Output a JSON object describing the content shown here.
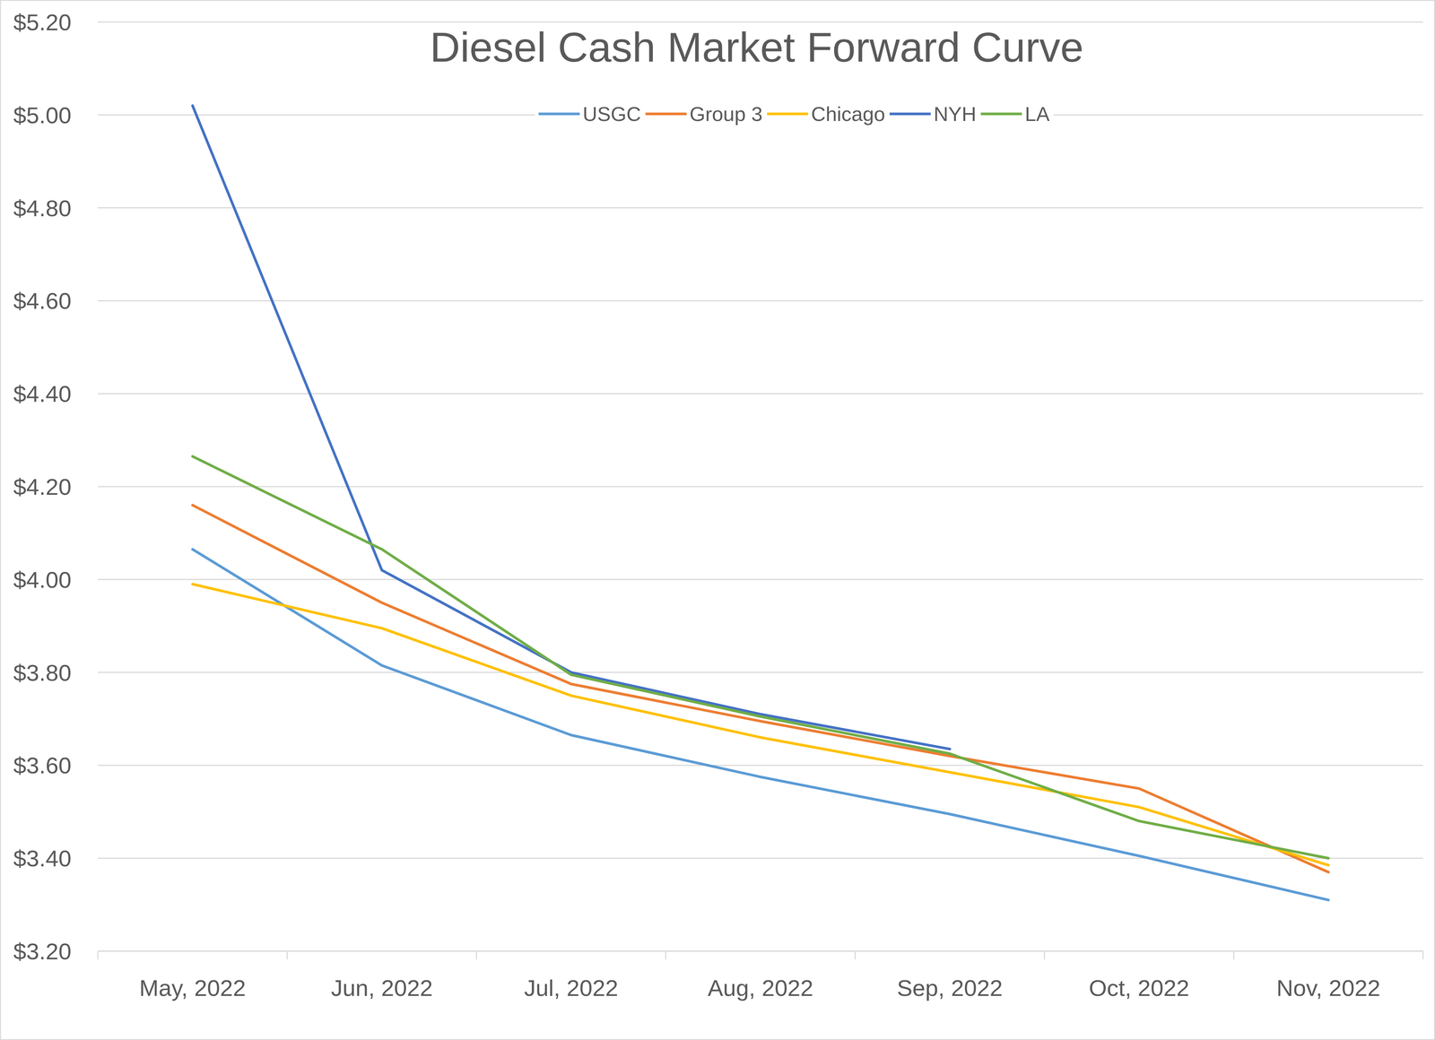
{
  "chart_data": {
    "type": "line",
    "title": "Diesel Cash Market Forward Curve",
    "categories": [
      "May, 2022",
      "Jun, 2022",
      "Jul, 2022",
      "Aug, 2022",
      "Sep, 2022",
      "Oct, 2022",
      "Nov, 2022"
    ],
    "series": [
      {
        "name": "USGC",
        "color": "#5b9bd5",
        "values": [
          4.065,
          3.815,
          3.665,
          3.575,
          3.495,
          3.405,
          3.31
        ]
      },
      {
        "name": "Group 3",
        "color": "#ed7d31",
        "values": [
          4.16,
          3.95,
          3.775,
          3.695,
          3.62,
          3.55,
          3.37
        ]
      },
      {
        "name": "Chicago",
        "color": "#ffc000",
        "values": [
          3.99,
          3.895,
          3.75,
          3.66,
          3.585,
          3.51,
          3.385
        ]
      },
      {
        "name": "NYH",
        "color": "#4472c4",
        "values": [
          5.02,
          4.02,
          3.8,
          3.71,
          3.635,
          null,
          null
        ]
      },
      {
        "name": "LA",
        "color": "#70ad47",
        "values": [
          4.265,
          4.065,
          3.795,
          3.705,
          3.625,
          3.48,
          3.4
        ]
      }
    ],
    "ylim": [
      3.2,
      5.2
    ],
    "yticks": [
      {
        "value": 3.2,
        "label": "$3.20"
      },
      {
        "value": 3.4,
        "label": "$3.40"
      },
      {
        "value": 3.6,
        "label": "$3.60"
      },
      {
        "value": 3.8,
        "label": "$3.80"
      },
      {
        "value": 4.0,
        "label": "$4.00"
      },
      {
        "value": 4.2,
        "label": "$4.20"
      },
      {
        "value": 4.4,
        "label": "$4.40"
      },
      {
        "value": 4.6,
        "label": "$4.60"
      },
      {
        "value": 4.8,
        "label": "$4.80"
      },
      {
        "value": 5.0,
        "label": "$5.00"
      },
      {
        "value": 5.2,
        "label": "$5.20"
      }
    ],
    "grid": true,
    "legend": "top"
  }
}
